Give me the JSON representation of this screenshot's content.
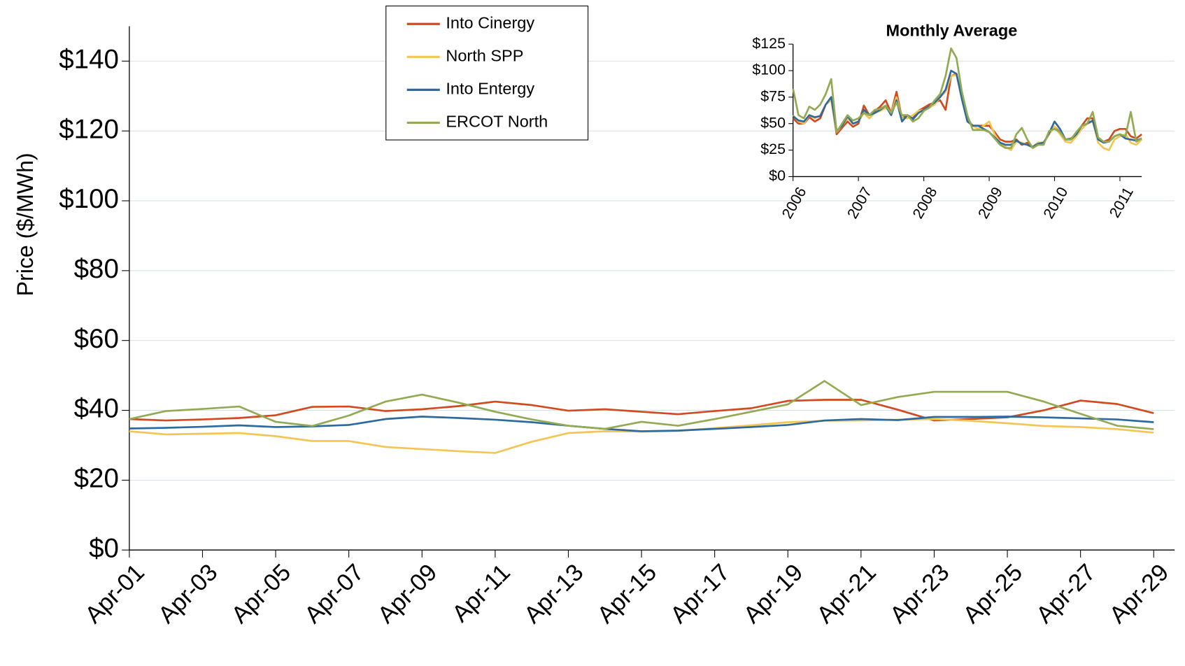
{
  "chart_data": [
    {
      "type": "line",
      "y_label": "Price ($/MWh)",
      "categories": [
        "Apr-01",
        null,
        "Apr-03",
        null,
        "Apr-05",
        null,
        "Apr-07",
        null,
        "Apr-09",
        null,
        "Apr-11",
        null,
        "Apr-13",
        null,
        "Apr-15",
        null,
        "Apr-17",
        null,
        "Apr-19",
        null,
        "Apr-21",
        null,
        "Apr-23",
        null,
        "Apr-25",
        null,
        "Apr-27",
        null,
        "Apr-29"
      ],
      "ylim": [
        0,
        150
      ],
      "yticks": [
        {
          "value": 0,
          "label": "$0"
        },
        {
          "value": 20,
          "label": "$20"
        },
        {
          "value": 40,
          "label": "$40"
        },
        {
          "value": 60,
          "label": "$60"
        },
        {
          "value": 80,
          "label": "$80"
        },
        {
          "value": 100,
          "label": "$100"
        },
        {
          "value": 120,
          "label": "$120"
        },
        {
          "value": 140,
          "label": "$140"
        }
      ],
      "grid": true,
      "series": [
        {
          "name": "Into Cinergy",
          "color": "#d24a1e",
          "values": [
            37.5,
            37.1,
            37.4,
            37.8,
            38.6,
            41,
            41.1,
            39.8,
            40.3,
            41.2,
            42.5,
            41.5,
            39.9,
            40.3,
            39.6,
            38.9,
            39.8,
            40.6,
            42.7,
            43,
            43,
            40.2,
            37.1,
            37.5,
            38,
            40,
            42.8,
            41.8,
            39.2
          ]
        },
        {
          "name": "North SPP",
          "color": "#f4c553",
          "values": [
            34,
            33.1,
            33.3,
            33.5,
            32.6,
            31.2,
            31.2,
            29.5,
            28.9,
            28.3,
            27.8,
            31,
            33.5,
            34,
            33.9,
            34.1,
            34.9,
            35.7,
            36.6,
            37,
            37.1,
            37.3,
            37.5,
            37,
            36.3,
            35.5,
            35.2,
            34.6,
            33.6
          ]
        },
        {
          "name": "Into Entergy",
          "color": "#2d6a9f",
          "values": [
            34.8,
            35,
            35.3,
            35.7,
            35.2,
            35.4,
            35.8,
            37.5,
            38.2,
            37.8,
            37.3,
            36.6,
            35.6,
            34.7,
            34,
            34.2,
            34.7,
            35.2,
            35.8,
            37.1,
            37.5,
            37.2,
            38.1,
            38.1,
            38.2,
            38,
            37.7,
            37.4,
            36.6
          ]
        },
        {
          "name": "ERCOT North",
          "color": "#92ab52",
          "values": [
            37.5,
            39.8,
            40.4,
            41.1,
            36.7,
            35.5,
            38.5,
            42.5,
            44.5,
            42.2,
            39.6,
            37.4,
            35.6,
            34.7,
            36.7,
            35.6,
            37.5,
            39.6,
            41.7,
            48.4,
            41.5,
            43.8,
            45.3,
            45.3,
            45.3,
            42.5,
            39,
            35.6,
            34.6
          ]
        }
      ]
    },
    {
      "type": "line",
      "title": "Monthly Average",
      "categories": [
        "2006",
        null,
        null,
        null,
        null,
        null,
        null,
        null,
        null,
        null,
        null,
        null,
        "2007",
        null,
        null,
        null,
        null,
        null,
        null,
        null,
        null,
        null,
        null,
        null,
        "2008",
        null,
        null,
        null,
        null,
        null,
        null,
        null,
        null,
        null,
        null,
        null,
        "2009",
        null,
        null,
        null,
        null,
        null,
        null,
        null,
        null,
        null,
        null,
        null,
        "2010",
        null,
        null,
        null,
        null,
        null,
        null,
        null,
        null,
        null,
        null,
        null,
        "2011",
        null,
        null,
        null,
        null
      ],
      "ylim": [
        0,
        125
      ],
      "yticks": [
        {
          "value": 0,
          "label": "$0"
        },
        {
          "value": 25,
          "label": "$25"
        },
        {
          "value": 50,
          "label": "$50"
        },
        {
          "value": 75,
          "label": "$75"
        },
        {
          "value": 100,
          "label": "$100"
        },
        {
          "value": 125,
          "label": "$125"
        }
      ],
      "grid": false,
      "series": [
        {
          "color": "#d24a1e",
          "values": [
            55,
            50,
            50,
            56,
            52,
            55,
            68,
            73,
            40,
            46,
            52,
            47,
            50,
            67,
            58,
            62,
            66,
            72,
            60,
            80,
            55,
            58,
            55,
            62,
            65,
            68,
            70,
            72,
            63,
            95,
            97,
            75,
            55,
            48,
            48,
            48,
            48,
            42,
            35,
            33,
            33,
            35,
            30,
            32,
            28,
            32,
            32,
            40,
            47,
            42,
            35,
            36,
            40,
            48,
            55,
            55,
            35,
            33,
            35,
            43,
            45,
            45,
            38,
            36,
            40
          ]
        },
        {
          "color": "#f4c553",
          "values": [
            58,
            52,
            50,
            58,
            55,
            58,
            68,
            72,
            42,
            48,
            55,
            50,
            52,
            60,
            55,
            60,
            62,
            65,
            60,
            75,
            55,
            55,
            58,
            62,
            63,
            65,
            68,
            75,
            80,
            95,
            96,
            78,
            55,
            48,
            45,
            48,
            52,
            40,
            32,
            28,
            25,
            33,
            32,
            30,
            27,
            32,
            32,
            40,
            47,
            40,
            33,
            32,
            38,
            45,
            50,
            52,
            32,
            27,
            25,
            35,
            38,
            40,
            32,
            30,
            35
          ]
        },
        {
          "color": "#2d6a9f",
          "values": [
            57,
            53,
            52,
            58,
            56,
            57,
            68,
            75,
            43,
            48,
            57,
            50,
            52,
            63,
            58,
            60,
            63,
            67,
            58,
            72,
            52,
            58,
            54,
            60,
            63,
            66,
            70,
            75,
            82,
            100,
            97,
            73,
            52,
            48,
            48,
            45,
            42,
            37,
            32,
            30,
            30,
            34,
            31,
            30,
            28,
            31,
            32,
            41,
            52,
            45,
            35,
            35,
            40,
            48,
            50,
            53,
            35,
            32,
            33,
            38,
            40,
            36,
            35,
            34,
            36
          ]
        },
        {
          "color": "#92ab52",
          "values": [
            83,
            58,
            55,
            66,
            63,
            68,
            78,
            92,
            42,
            50,
            58,
            53,
            55,
            60,
            58,
            63,
            64,
            67,
            60,
            70,
            58,
            58,
            52,
            55,
            62,
            65,
            72,
            78,
            95,
            121,
            112,
            80,
            58,
            44,
            44,
            44,
            42,
            36,
            30,
            27,
            27,
            40,
            46,
            35,
            27,
            30,
            30,
            43,
            45,
            42,
            35,
            35,
            42,
            48,
            50,
            61,
            37,
            33,
            33,
            38,
            40,
            38,
            61,
            33,
            36
          ]
        }
      ]
    }
  ]
}
